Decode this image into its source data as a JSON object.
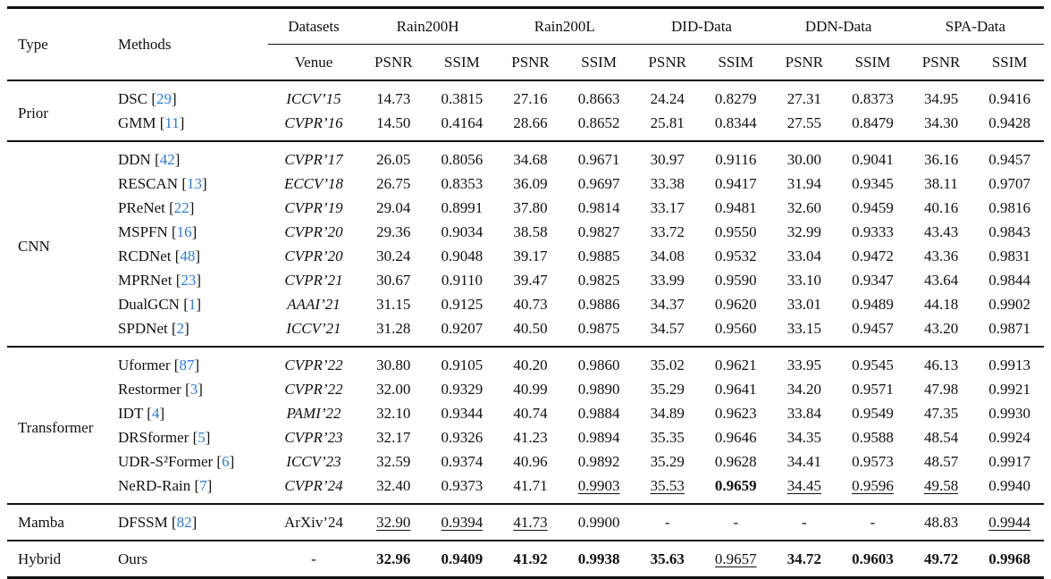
{
  "colors": {
    "citation_blue": "#2a7ae2",
    "rule_black": "#111111",
    "background": "#ffffff"
  },
  "table": {
    "header": {
      "type": "Type",
      "methods": "Methods",
      "datasets": "Datasets",
      "venue": "Venue",
      "metric_psnr": "PSNR",
      "metric_ssim": "SSIM",
      "dataset_groups": [
        "Rain200H",
        "Rain200L",
        "DID-Data",
        "DDN-Data",
        "SPA-Data"
      ]
    },
    "sections": [
      {
        "type": "Prior",
        "rows": [
          {
            "method": "DSC",
            "ref": "29",
            "venue": "ICCV’15",
            "venue_italic": true,
            "values": [
              "14.73",
              "0.3815",
              "27.16",
              "0.8663",
              "24.24",
              "0.8279",
              "27.31",
              "0.8373",
              "34.95",
              "0.9416"
            ],
            "fmt": [
              "",
              "",
              "",
              "",
              "",
              "",
              "",
              "",
              "",
              ""
            ]
          },
          {
            "method": "GMM",
            "ref": "11",
            "venue": "CVPR’16",
            "venue_italic": true,
            "values": [
              "14.50",
              "0.4164",
              "28.66",
              "0.8652",
              "25.81",
              "0.8344",
              "27.55",
              "0.8479",
              "34.30",
              "0.9428"
            ],
            "fmt": [
              "",
              "",
              "",
              "",
              "",
              "",
              "",
              "",
              "",
              ""
            ]
          }
        ]
      },
      {
        "type": "CNN",
        "rows": [
          {
            "method": "DDN",
            "ref": "42",
            "venue": "CVPR’17",
            "venue_italic": true,
            "values": [
              "26.05",
              "0.8056",
              "34.68",
              "0.9671",
              "30.97",
              "0.9116",
              "30.00",
              "0.9041",
              "36.16",
              "0.9457"
            ],
            "fmt": [
              "",
              "",
              "",
              "",
              "",
              "",
              "",
              "",
              "",
              ""
            ]
          },
          {
            "method": "RESCAN",
            "ref": "13",
            "venue": "ECCV’18",
            "venue_italic": true,
            "values": [
              "26.75",
              "0.8353",
              "36.09",
              "0.9697",
              "33.38",
              "0.9417",
              "31.94",
              "0.9345",
              "38.11",
              "0.9707"
            ],
            "fmt": [
              "",
              "",
              "",
              "",
              "",
              "",
              "",
              "",
              "",
              ""
            ]
          },
          {
            "method": "PReNet",
            "ref": "22",
            "venue": "CVPR’19",
            "venue_italic": true,
            "values": [
              "29.04",
              "0.8991",
              "37.80",
              "0.9814",
              "33.17",
              "0.9481",
              "32.60",
              "0.9459",
              "40.16",
              "0.9816"
            ],
            "fmt": [
              "",
              "",
              "",
              "",
              "",
              "",
              "",
              "",
              "",
              ""
            ]
          },
          {
            "method": "MSPFN",
            "ref": "16",
            "venue": "CVPR’20",
            "venue_italic": true,
            "values": [
              "29.36",
              "0.9034",
              "38.58",
              "0.9827",
              "33.72",
              "0.9550",
              "32.99",
              "0.9333",
              "43.43",
              "0.9843"
            ],
            "fmt": [
              "",
              "",
              "",
              "",
              "",
              "",
              "",
              "",
              "",
              ""
            ]
          },
          {
            "method": "RCDNet",
            "ref": "48",
            "venue": "CVPR’20",
            "venue_italic": true,
            "values": [
              "30.24",
              "0.9048",
              "39.17",
              "0.9885",
              "34.08",
              "0.9532",
              "33.04",
              "0.9472",
              "43.36",
              "0.9831"
            ],
            "fmt": [
              "",
              "",
              "",
              "",
              "",
              "",
              "",
              "",
              "",
              ""
            ]
          },
          {
            "method": "MPRNet",
            "ref": "23",
            "venue": "CVPR’21",
            "venue_italic": true,
            "values": [
              "30.67",
              "0.9110",
              "39.47",
              "0.9825",
              "33.99",
              "0.9590",
              "33.10",
              "0.9347",
              "43.64",
              "0.9844"
            ],
            "fmt": [
              "",
              "",
              "",
              "",
              "",
              "",
              "",
              "",
              "",
              ""
            ]
          },
          {
            "method": "DualGCN",
            "ref": "1",
            "venue": "AAAI’21",
            "venue_italic": true,
            "values": [
              "31.15",
              "0.9125",
              "40.73",
              "0.9886",
              "34.37",
              "0.9620",
              "33.01",
              "0.9489",
              "44.18",
              "0.9902"
            ],
            "fmt": [
              "",
              "",
              "",
              "",
              "",
              "",
              "",
              "",
              "",
              ""
            ]
          },
          {
            "method": "SPDNet",
            "ref": "2",
            "venue": "ICCV’21",
            "venue_italic": true,
            "values": [
              "31.28",
              "0.9207",
              "40.50",
              "0.9875",
              "34.57",
              "0.9560",
              "33.15",
              "0.9457",
              "43.20",
              "0.9871"
            ],
            "fmt": [
              "",
              "",
              "",
              "",
              "",
              "",
              "",
              "",
              "",
              ""
            ]
          }
        ]
      },
      {
        "type": "Transformer",
        "rows": [
          {
            "method": "Uformer",
            "ref": "87",
            "venue": "CVPR’22",
            "venue_italic": true,
            "values": [
              "30.80",
              "0.9105",
              "40.20",
              "0.9860",
              "35.02",
              "0.9621",
              "33.95",
              "0.9545",
              "46.13",
              "0.9913"
            ],
            "fmt": [
              "",
              "",
              "",
              "",
              "",
              "",
              "",
              "",
              "",
              ""
            ]
          },
          {
            "method": "Restormer",
            "ref": "3",
            "venue": "CVPR’22",
            "venue_italic": true,
            "values": [
              "32.00",
              "0.9329",
              "40.99",
              "0.9890",
              "35.29",
              "0.9641",
              "34.20",
              "0.9571",
              "47.98",
              "0.9921"
            ],
            "fmt": [
              "",
              "",
              "",
              "",
              "",
              "",
              "",
              "",
              "",
              ""
            ]
          },
          {
            "method": "IDT",
            "ref": "4",
            "venue": "PAMI’22",
            "venue_italic": true,
            "values": [
              "32.10",
              "0.9344",
              "40.74",
              "0.9884",
              "34.89",
              "0.9623",
              "33.84",
              "0.9549",
              "47.35",
              "0.9930"
            ],
            "fmt": [
              "",
              "",
              "",
              "",
              "",
              "",
              "",
              "",
              "",
              ""
            ]
          },
          {
            "method": "DRSformer",
            "ref": "5",
            "venue": "CVPR’23",
            "venue_italic": true,
            "values": [
              "32.17",
              "0.9326",
              "41.23",
              "0.9894",
              "35.35",
              "0.9646",
              "34.35",
              "0.9588",
              "48.54",
              "0.9924"
            ],
            "fmt": [
              "",
              "",
              "",
              "",
              "",
              "",
              "",
              "",
              "",
              ""
            ]
          },
          {
            "method": "UDR-S²Former",
            "ref": "6",
            "venue": "ICCV’23",
            "venue_italic": true,
            "values": [
              "32.59",
              "0.9374",
              "40.96",
              "0.9892",
              "35.29",
              "0.9628",
              "34.41",
              "0.9573",
              "48.57",
              "0.9917"
            ],
            "fmt": [
              "",
              "",
              "",
              "",
              "",
              "",
              "",
              "",
              "",
              ""
            ]
          },
          {
            "method": "NeRD-Rain",
            "ref": "7",
            "venue": "CVPR’24",
            "venue_italic": true,
            "values": [
              "32.40",
              "0.9373",
              "41.71",
              "0.9903",
              "35.53",
              "0.9659",
              "34.45",
              "0.9596",
              "49.58",
              "0.9940"
            ],
            "fmt": [
              "",
              "",
              "",
              "u",
              "u",
              "b",
              "u",
              "u",
              "u",
              ""
            ]
          }
        ]
      },
      {
        "type": "Mamba",
        "rows": [
          {
            "method": "DFSSM",
            "ref": "82",
            "venue": "ArXiv’24",
            "venue_italic": false,
            "values": [
              "32.90",
              "0.9394",
              "41.73",
              "0.9900",
              "-",
              "-",
              "-",
              "-",
              "48.83",
              "0.9944"
            ],
            "fmt": [
              "u",
              "u",
              "u",
              "",
              "",
              "",
              "",
              "",
              "",
              "u"
            ]
          }
        ]
      },
      {
        "type": "Hybrid",
        "rows": [
          {
            "method": "Ours",
            "ref": null,
            "venue": "-",
            "venue_italic": false,
            "values": [
              "32.96",
              "0.9409",
              "41.92",
              "0.9938",
              "35.63",
              "0.9657",
              "34.72",
              "0.9603",
              "49.72",
              "0.9968"
            ],
            "fmt": [
              "b",
              "b",
              "b",
              "b",
              "b",
              "u",
              "b",
              "b",
              "b",
              "b"
            ]
          }
        ]
      }
    ]
  }
}
